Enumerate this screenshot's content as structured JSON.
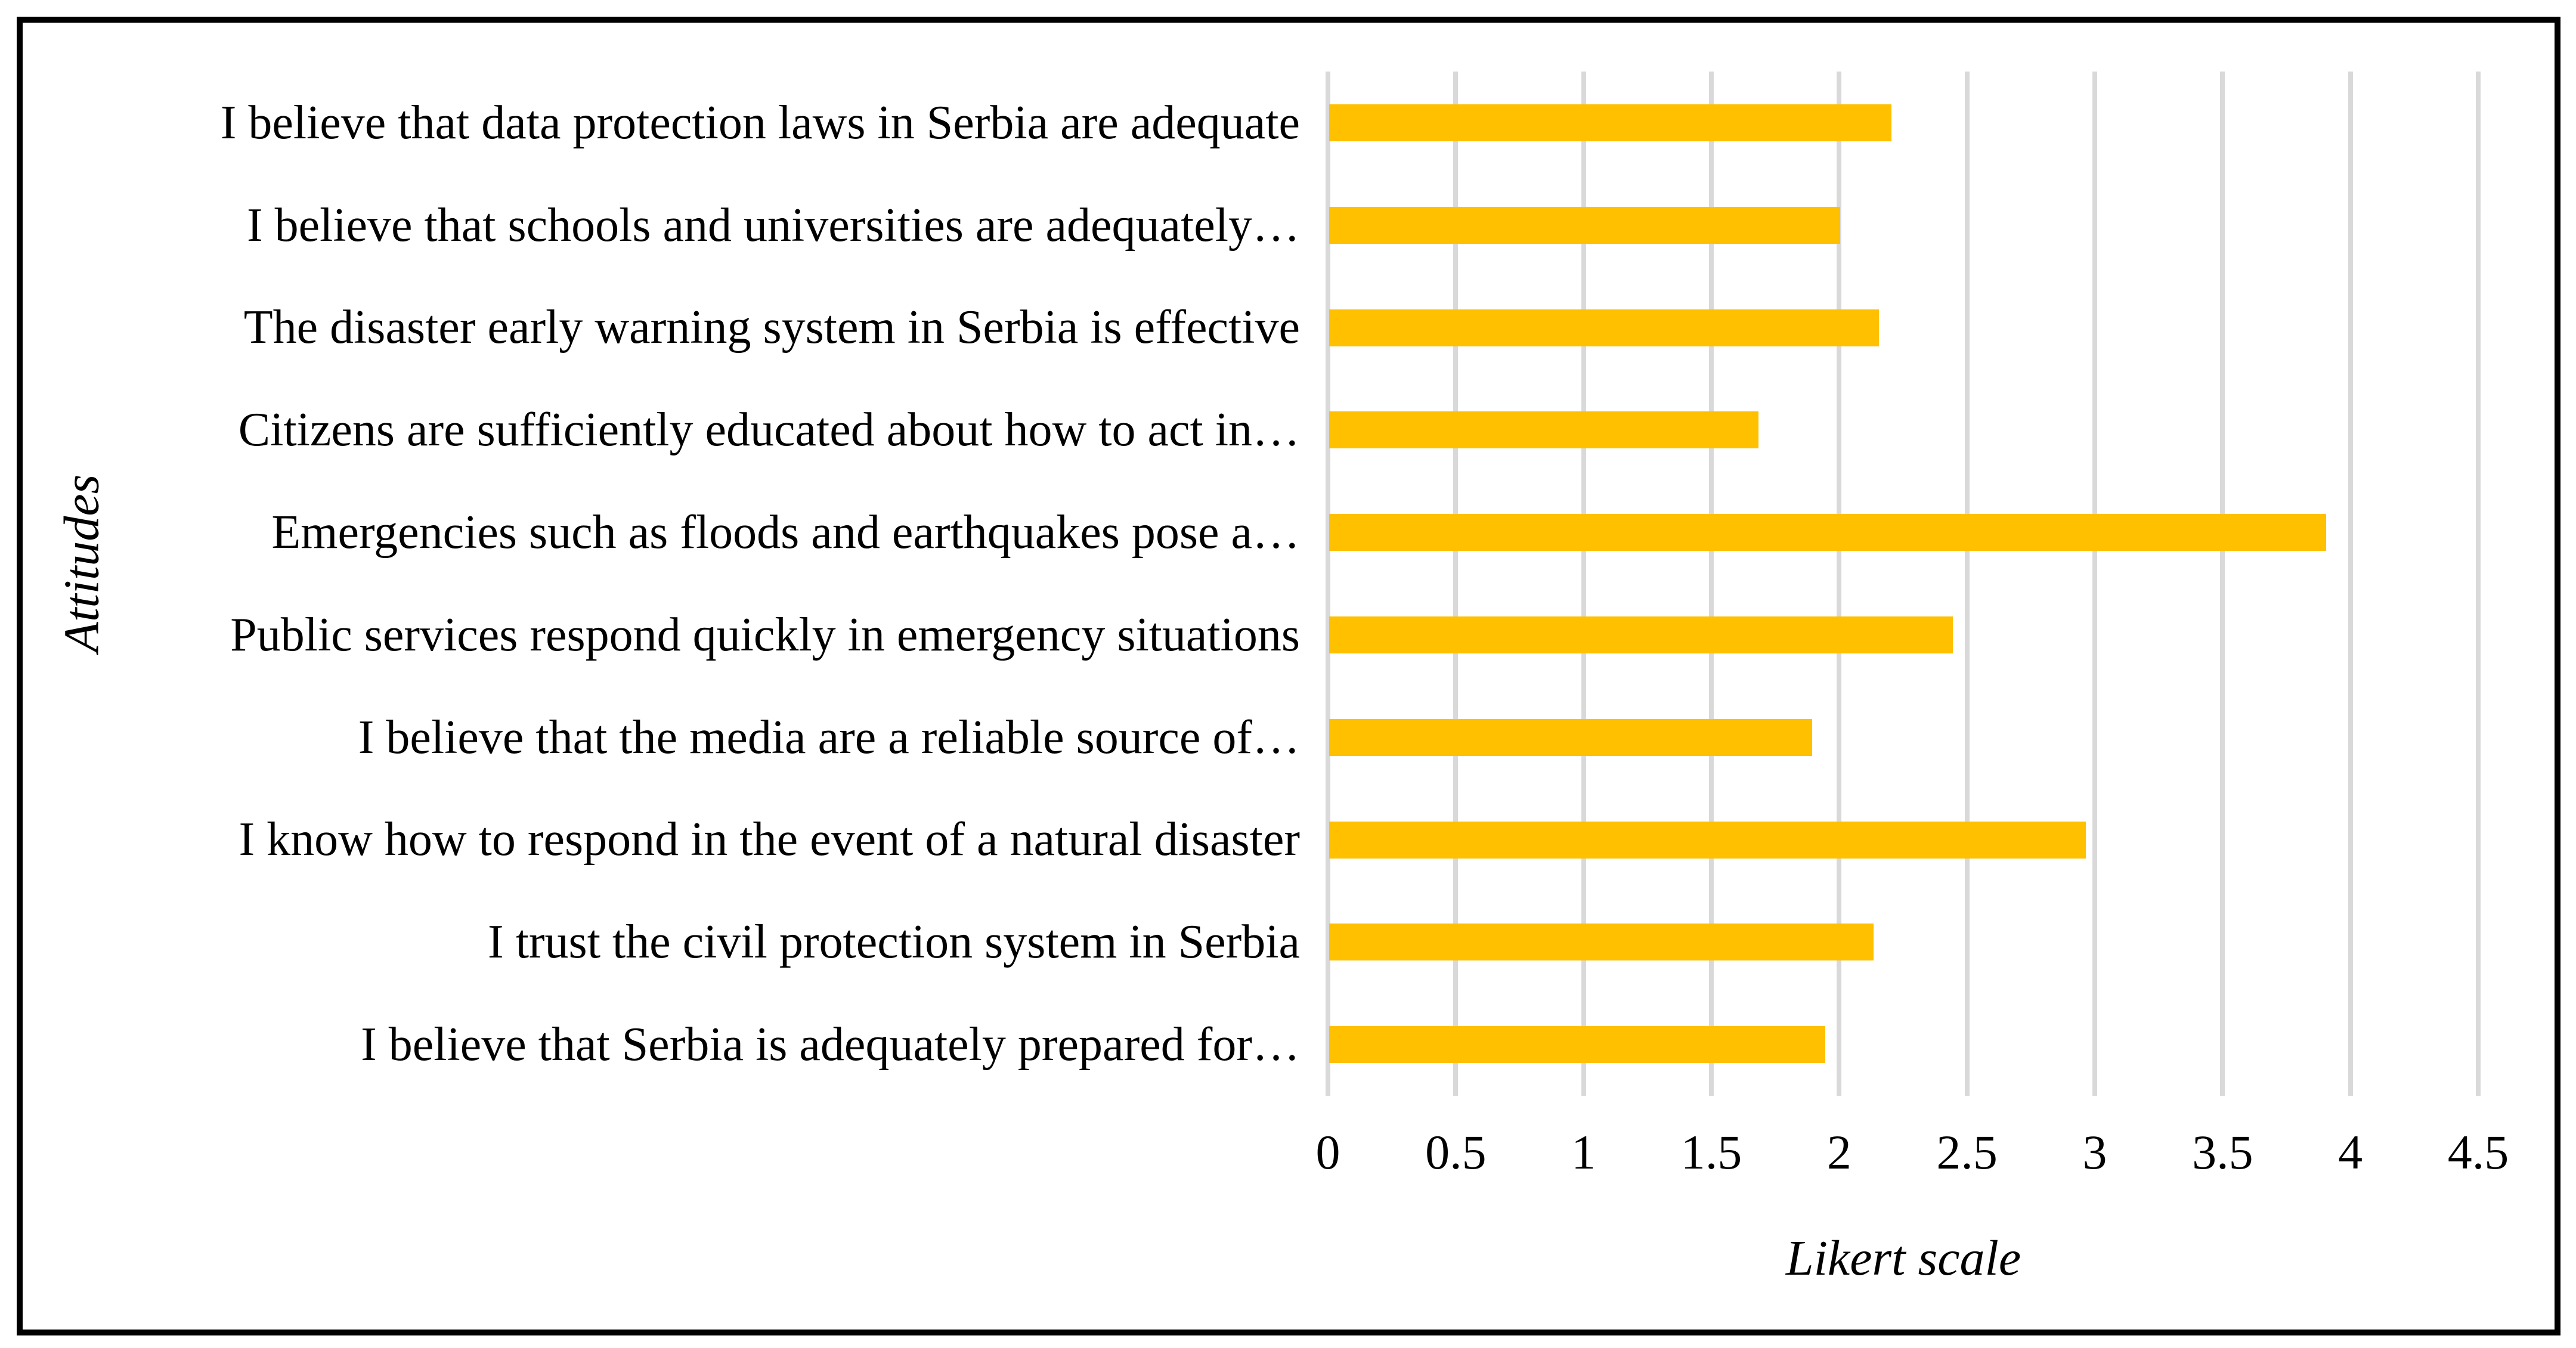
{
  "chart_data": {
    "type": "bar",
    "orientation": "horizontal",
    "title": "",
    "xlabel": "Likert scale",
    "ylabel": "Attitudes",
    "categories": [
      "I believe that data protection laws in Serbia are adequate",
      "I believe that schools and universities are adequately…",
      "The disaster early warning system in Serbia is effective",
      "Citizens are sufficiently educated about how to act in…",
      "Emergencies such as floods and earthquakes pose a…",
      "Public services respond quickly in emergency situations",
      "I believe that the media are a reliable source of…",
      "I know how to respond in the event of a natural disaster",
      "I trust the civil protection system in Serbia",
      "I believe that Serbia is adequately prepared for…"
    ],
    "values": [
      2.2,
      2.0,
      2.15,
      1.68,
      3.9,
      2.44,
      1.89,
      2.96,
      2.13,
      1.94
    ],
    "xlim": [
      0,
      4.5
    ],
    "xticks": [
      0,
      0.5,
      1,
      1.5,
      2,
      2.5,
      3,
      3.5,
      4,
      4.5
    ],
    "xtick_labels": [
      "0",
      "0.5",
      "1",
      "1.5",
      "2",
      "2.5",
      "3",
      "3.5",
      "4",
      "4.5"
    ],
    "grid": "vertical-gridlines-on",
    "legend_position": "none",
    "bar_color": "#FFC000",
    "gridline_color": "#D9D9D9",
    "border_color": "#000000",
    "background_color": "#FFFFFF"
  }
}
